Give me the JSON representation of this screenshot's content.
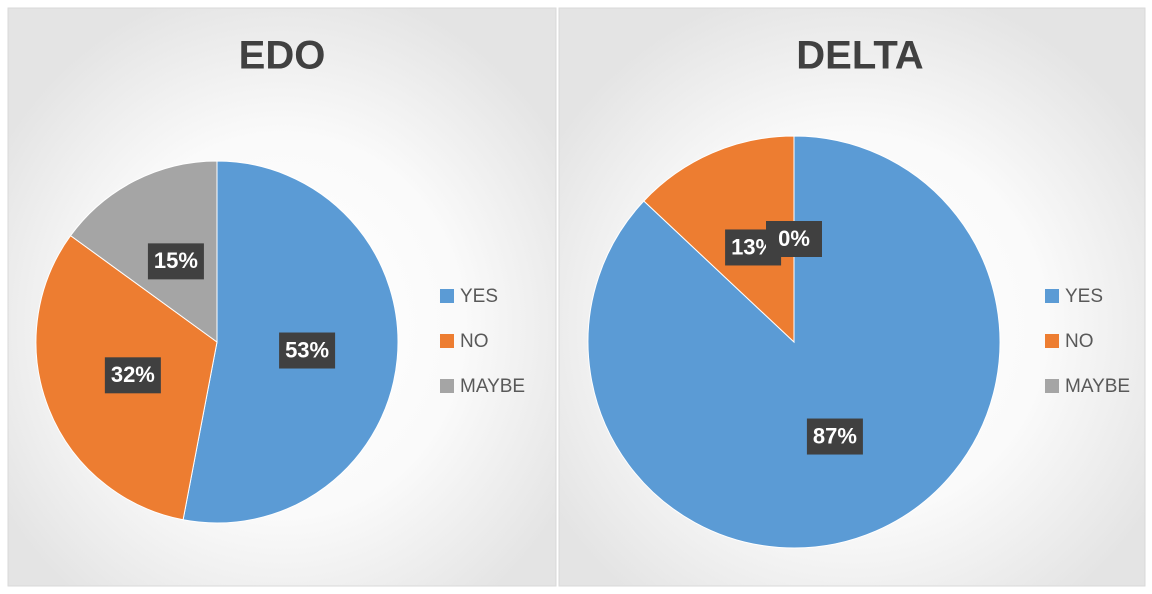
{
  "chart_data": [
    {
      "type": "pie",
      "title": "EDO",
      "categories": [
        "YES",
        "NO",
        "MAYBE"
      ],
      "values": [
        53,
        32,
        15
      ],
      "value_labels": [
        "53%",
        "32%",
        "15%"
      ],
      "colors": [
        "#5b9bd5",
        "#ed7d31",
        "#a5a5a5"
      ],
      "legend": "right"
    },
    {
      "type": "pie",
      "title": "DELTA",
      "categories": [
        "YES",
        "NO",
        "MAYBE"
      ],
      "values": [
        87,
        13,
        0
      ],
      "value_labels": [
        "87%",
        "13%",
        "0%"
      ],
      "colors": [
        "#5b9bd5",
        "#ed7d31",
        "#a5a5a5"
      ],
      "legend": "right"
    }
  ]
}
